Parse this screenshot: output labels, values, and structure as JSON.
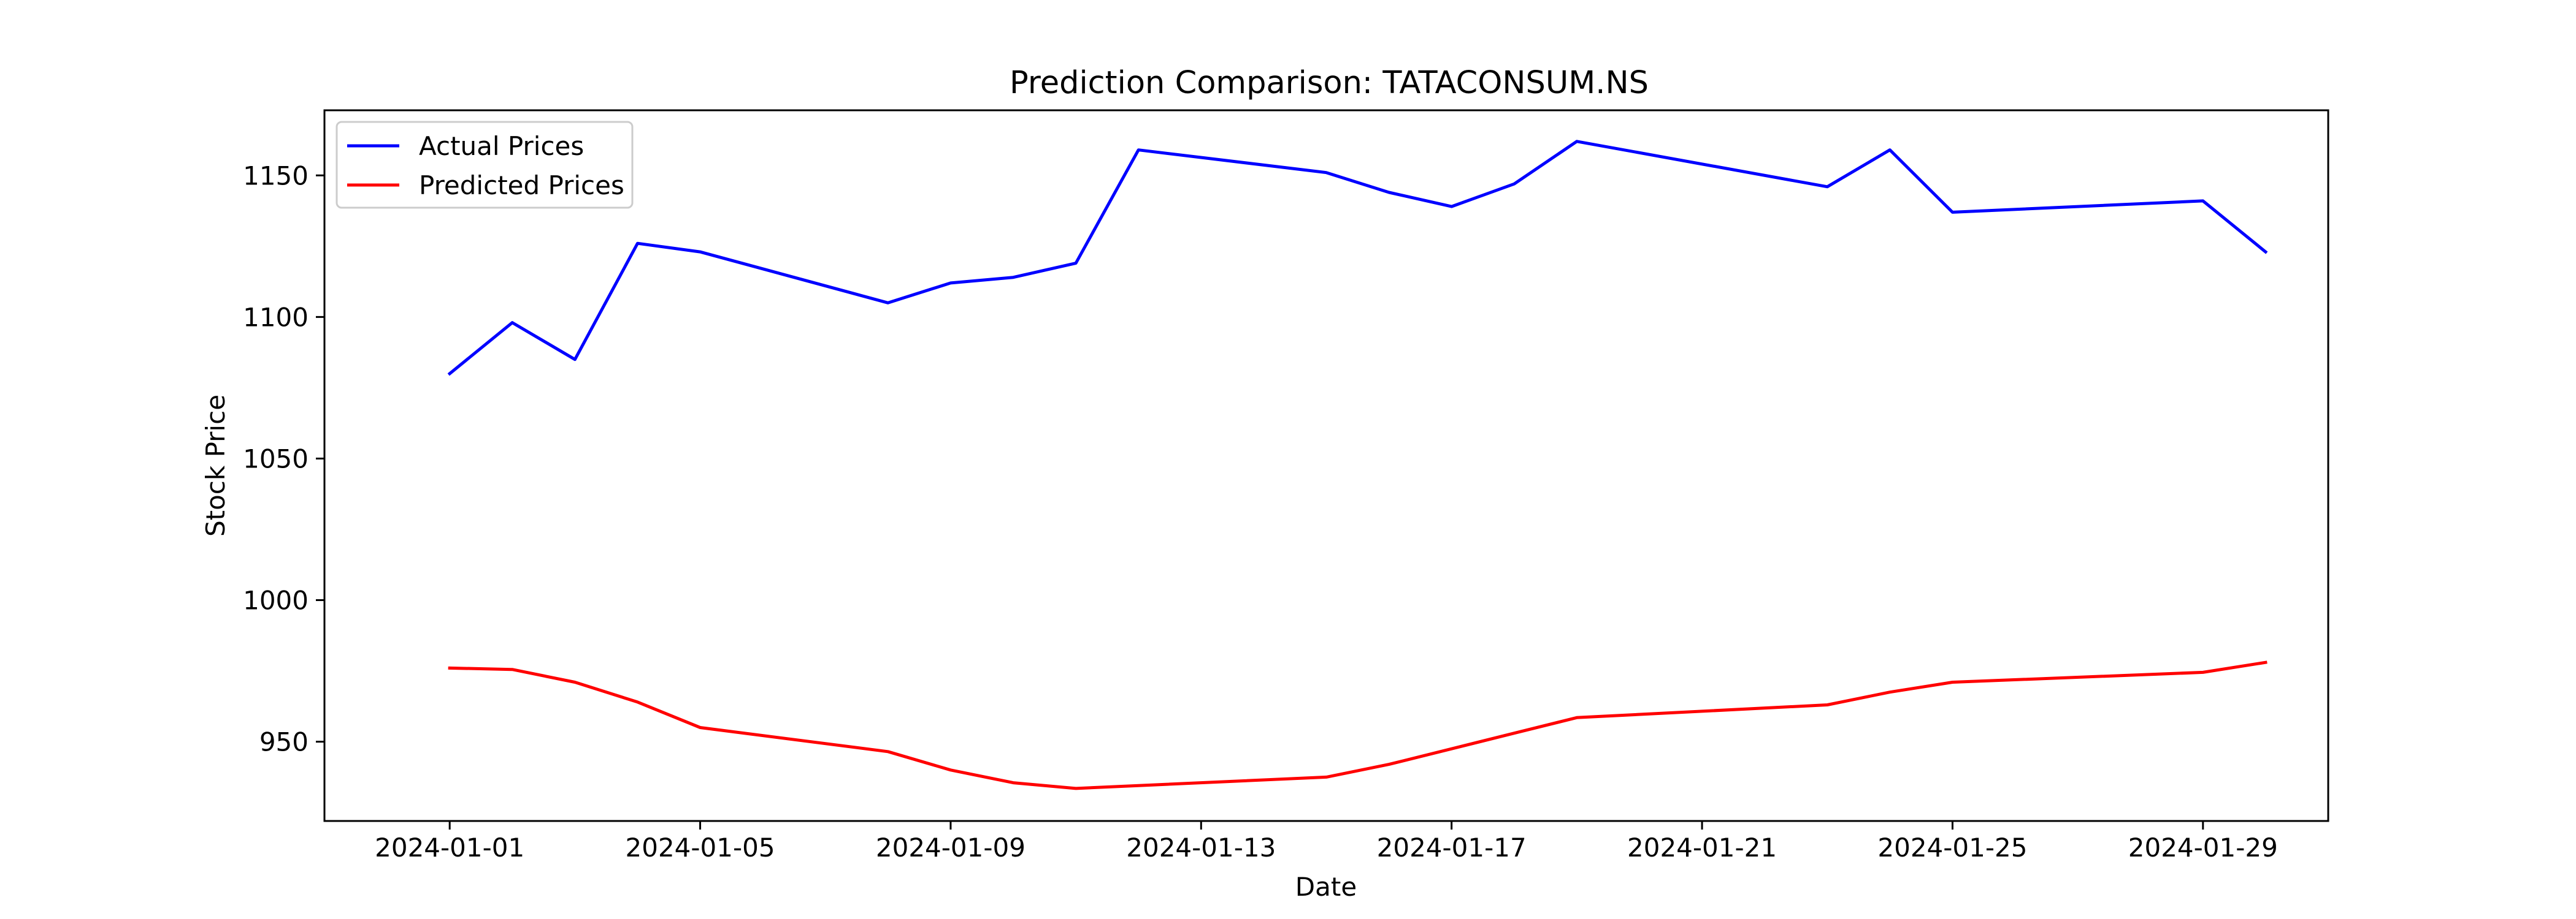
{
  "chart_data": {
    "type": "line",
    "title": "Prediction Comparison: TATACONSUM.NS",
    "xlabel": "Date",
    "ylabel": "Stock Price",
    "x": [
      "2024-01-01",
      "2024-01-02",
      "2024-01-03",
      "2024-01-04",
      "2024-01-05",
      "2024-01-08",
      "2024-01-09",
      "2024-01-10",
      "2024-01-11",
      "2024-01-12",
      "2024-01-15",
      "2024-01-16",
      "2024-01-17",
      "2024-01-18",
      "2024-01-19",
      "2024-01-23",
      "2024-01-24",
      "2024-01-25",
      "2024-01-29",
      "2024-01-30"
    ],
    "series": [
      {
        "name": "Actual Prices",
        "color": "#0000ff",
        "values": [
          1080,
          1098,
          1085,
          1126,
          1123,
          1105,
          1112,
          1114,
          1119,
          1159,
          1151,
          1144,
          1139,
          1147,
          1162,
          1146,
          1159,
          1137,
          1141,
          1123
        ]
      },
      {
        "name": "Predicted Prices",
        "color": "#ff0000",
        "values": [
          976,
          975.5,
          971,
          964,
          955,
          946.5,
          940,
          935.5,
          933.5,
          934.5,
          937.5,
          942,
          947.5,
          953,
          958.5,
          963,
          967.5,
          971,
          974.5,
          978
        ]
      }
    ],
    "xticks": [
      "2024-01-01",
      "2024-01-05",
      "2024-01-09",
      "2024-01-13",
      "2024-01-17",
      "2024-01-21",
      "2024-01-25",
      "2024-01-29"
    ],
    "yticks": [
      950,
      1000,
      1050,
      1100,
      1150
    ],
    "xlim": [
      "2023-12-30",
      "2024-01-31"
    ],
    "ylim": [
      922,
      1173
    ],
    "grid": false,
    "legend_position": "top-left"
  }
}
